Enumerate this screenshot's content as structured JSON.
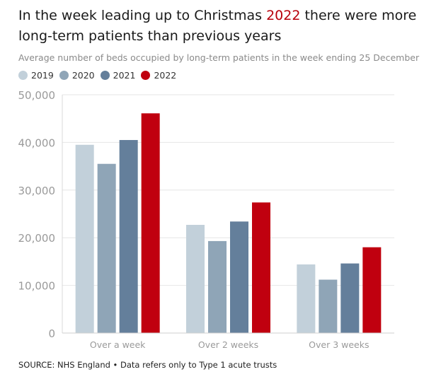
{
  "title": {
    "before": "In the week leading up to Christmas ",
    "highlight": "2022",
    "after": " there were more long-term patients than previous years"
  },
  "subtitle": "Average number of beds occupied by long-term patients in the week ending 25 December",
  "source": "SOURCE: NHS England • Data refers only to Type 1 acute trusts",
  "colors": {
    "2019": "#c2d0da",
    "2020": "#8fa5b7",
    "2021": "#647f9b",
    "2022": "#c0000f",
    "highlight": "#b8000b",
    "grid": "#e6e6e6",
    "tick": "#9a9a9a"
  },
  "chart_data": {
    "type": "bar",
    "categories": [
      "Over a week",
      "Over 2 weeks",
      "Over 3 weeks"
    ],
    "series": [
      {
        "name": "2019",
        "values": [
          39500,
          22700,
          14400
        ]
      },
      {
        "name": "2020",
        "values": [
          35500,
          19300,
          11200
        ]
      },
      {
        "name": "2021",
        "values": [
          40500,
          23400,
          14600
        ]
      },
      {
        "name": "2022",
        "values": [
          46100,
          27400,
          18000
        ]
      }
    ],
    "yticks": [
      "0",
      "10,000",
      "20,000",
      "30,000",
      "40,000",
      "50,000"
    ],
    "ylim": [
      0,
      50000
    ],
    "grid": true,
    "legend": "top-left"
  }
}
